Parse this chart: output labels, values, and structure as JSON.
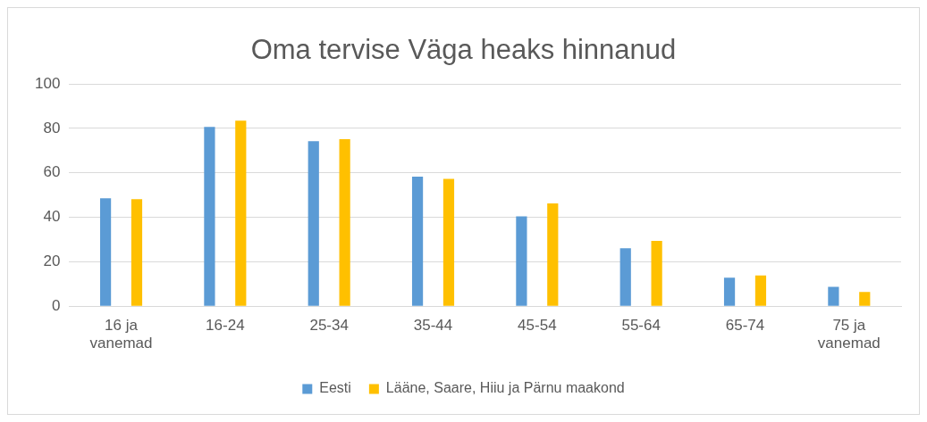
{
  "chart_data": {
    "type": "bar",
    "title": "Oma tervise Väga heaks hinnanud",
    "categories": [
      "16 ja vanemad",
      "16-24",
      "25-34",
      "35-44",
      "45-54",
      "55-64",
      "65-74",
      "75 ja vanemad"
    ],
    "series": [
      {
        "name": "Eesti",
        "color": "#5b9bd5",
        "values": [
          48.6,
          80.7,
          74.3,
          58.3,
          40.4,
          26.1,
          12.8,
          8.7
        ]
      },
      {
        "name": "Lääne, Saare, Hiiu ja Pärnu maakond",
        "color": "#ffc000",
        "values": [
          48.2,
          83.5,
          75.2,
          57.3,
          46.3,
          29.4,
          13.8,
          6.4
        ]
      }
    ],
    "ylim": [
      0,
      100
    ],
    "yticks": [
      0,
      20,
      40,
      60,
      80,
      100
    ],
    "grid": "y",
    "legend": "bottom"
  }
}
